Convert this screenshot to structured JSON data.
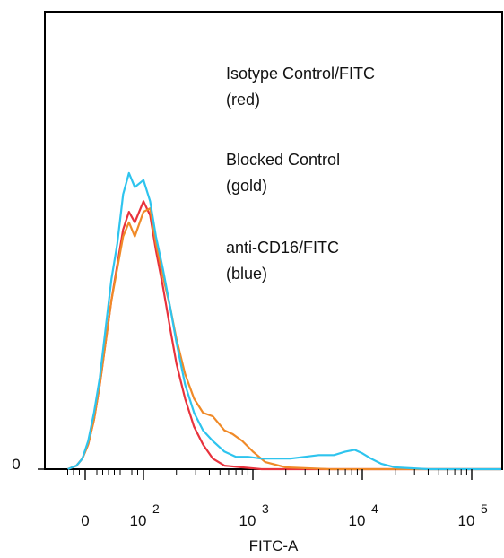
{
  "chart_data": {
    "type": "line",
    "xlabel": "FITC-A",
    "ylabel": "",
    "x_scale": "biexponential",
    "xlim": [
      -30,
      300000
    ],
    "ylim": [
      0,
      100
    ],
    "x_ticks": [
      {
        "value": 0,
        "label": "0",
        "exp": ""
      },
      {
        "value": 100,
        "label": "10",
        "exp": "2"
      },
      {
        "value": 1000,
        "label": "10",
        "exp": "3"
      },
      {
        "value": 10000,
        "label": "10",
        "exp": "4"
      },
      {
        "value": 100000,
        "label": "10",
        "exp": "5"
      }
    ],
    "y_ticks": [
      {
        "value": 0,
        "label": "0"
      }
    ],
    "grid": false,
    "legend": [
      {
        "line1": "Isotype Control/FITC",
        "line2": "(red)"
      },
      {
        "line1": "Blocked Control",
        "line2": "(gold)"
      },
      {
        "line1": "anti-CD16/FITC",
        "line2": "(blue)"
      }
    ],
    "series": [
      {
        "color": "#e8323c",
        "x": [
          -30,
          -15,
          -5,
          5,
          15,
          25,
          35,
          45,
          55,
          65,
          75,
          85,
          100,
          115,
          130,
          150,
          175,
          200,
          240,
          290,
          350,
          430,
          550,
          800,
          1200,
          2000,
          5000,
          20000,
          100000,
          300000
        ],
        "y": [
          0,
          1,
          3,
          7,
          14,
          24,
          36,
          48,
          58,
          68,
          73,
          70,
          76,
          72,
          62,
          52,
          40,
          30,
          20,
          12,
          7,
          3,
          1,
          0.5,
          0,
          0,
          0,
          0,
          0,
          0
        ]
      },
      {
        "color": "#f08a28",
        "x": [
          -30,
          -15,
          -5,
          5,
          15,
          25,
          35,
          45,
          55,
          65,
          75,
          85,
          100,
          115,
          130,
          150,
          175,
          200,
          240,
          290,
          350,
          430,
          550,
          650,
          800,
          1000,
          1300,
          2000,
          5000,
          20000,
          100000,
          300000
        ],
        "y": [
          0,
          1,
          3,
          7,
          14,
          24,
          36,
          48,
          57,
          66,
          70,
          66,
          73,
          74,
          64,
          55,
          46,
          37,
          27,
          20,
          16,
          15,
          11,
          10,
          8,
          5,
          2,
          0.5,
          0,
          0,
          0,
          0
        ]
      },
      {
        "color": "#2ec4ee",
        "x": [
          -30,
          -15,
          -5,
          5,
          15,
          25,
          35,
          45,
          55,
          65,
          75,
          85,
          100,
          115,
          130,
          150,
          175,
          200,
          240,
          290,
          350,
          430,
          550,
          700,
          900,
          1200,
          1600,
          2200,
          3000,
          4000,
          5500,
          7000,
          8500,
          10000,
          12000,
          15000,
          20000,
          40000,
          100000,
          300000
        ],
        "y": [
          0,
          1,
          3,
          8,
          16,
          26,
          40,
          54,
          64,
          78,
          84,
          80,
          82,
          76,
          66,
          57,
          46,
          36,
          24,
          16,
          11,
          8,
          5,
          3.5,
          3.5,
          3,
          3,
          3,
          3.5,
          4,
          4,
          5,
          5.5,
          4.5,
          3,
          1.5,
          0.5,
          0,
          0,
          0
        ]
      }
    ]
  }
}
